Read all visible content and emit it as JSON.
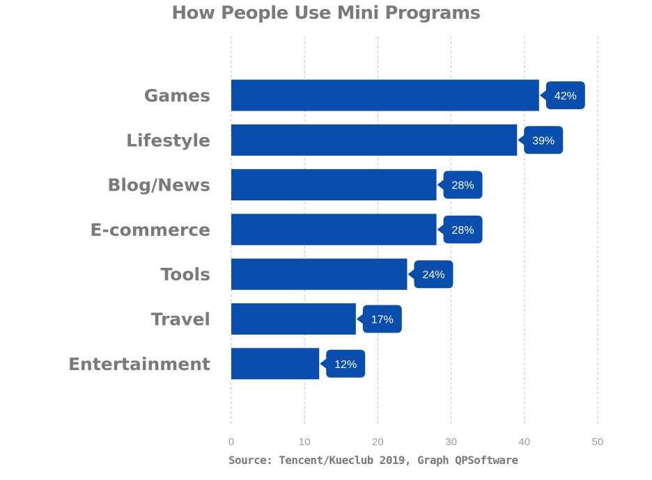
{
  "chart_data": {
    "type": "bar",
    "orientation": "horizontal",
    "title": "How People Use Mini Programs",
    "source": "Source: Tencent/Kueclub 2019, Graph QPSoftware",
    "categories": [
      "Games",
      "Lifestyle",
      "Blog/News",
      "E-commerce",
      "Tools",
      "Travel",
      "Entertainment"
    ],
    "values": [
      42,
      39,
      28,
      28,
      24,
      17,
      12
    ],
    "data_labels": [
      "42%",
      "39%",
      "28%",
      "28%",
      "24%",
      "17%",
      "12%"
    ],
    "xlim": [
      0,
      50
    ],
    "x_ticks": [
      "0",
      "10",
      "20",
      "30",
      "40",
      "50"
    ],
    "grid": "vertical dashed",
    "legend": "none",
    "bar_color": "#0a4ead",
    "label_bg_color": "#0a4ead"
  }
}
